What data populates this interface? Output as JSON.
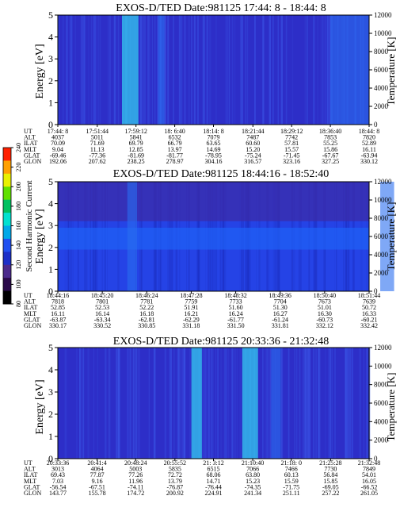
{
  "panels": [
    {
      "title": "EXOS-D/TED   Date:981125  17:44: 8 - 18:44: 8",
      "ylabel": "Energy [eV]",
      "rlabel": "Temperature [K]",
      "yticks": [
        "0",
        "1",
        "2",
        "3",
        "4",
        "5"
      ],
      "rticks": [
        "0",
        "2000",
        "4000",
        "6000",
        "8000",
        "10000",
        "12000"
      ],
      "table": {
        "labels": [
          "UT",
          "ALT",
          "ILAT",
          "MLT",
          "GLAT",
          "GLON"
        ],
        "columns": [
          [
            "17:44: 8",
            "4037",
            "70.09",
            "9.04",
            "-69.46",
            "192.06"
          ],
          [
            "17:51:44",
            "5011",
            "71.69",
            "11.13",
            "-77.36",
            "207.62"
          ],
          [
            "17:59:12",
            "5841",
            "69.79",
            "12.85",
            "-81.69",
            "238.25"
          ],
          [
            "18: 6:40",
            "6532",
            "66.79",
            "13.97",
            "-81.77",
            "278.97"
          ],
          [
            "18:14: 8",
            "7079",
            "63.65",
            "14.69",
            "-78.95",
            "304.16"
          ],
          [
            "18:21:44",
            "7487",
            "60.60",
            "15.20",
            "-75.24",
            "316.57"
          ],
          [
            "18:29:12",
            "7742",
            "57.81",
            "15.57",
            "-71.45",
            "323.16"
          ],
          [
            "18:36:40",
            "7853",
            "55.25",
            "15.86",
            "-67.67",
            "327.25"
          ],
          [
            "18:44: 8",
            "7820",
            "52.89",
            "16.11",
            "-63.94",
            "330.12"
          ]
        ]
      }
    },
    {
      "title": "EXOS-D/TED   Date:981125  18:44:16 - 18:52:40",
      "ylabel": "Energy [eV]",
      "rlabel": "Temperature [K]",
      "yticks": [
        "0",
        "1",
        "2",
        "3",
        "4",
        "5"
      ],
      "rticks": [
        "0",
        "2000",
        "4000",
        "6000",
        "8000",
        "10000",
        "12000"
      ],
      "table": {
        "labels": [
          "UT",
          "ALT",
          "ILAT",
          "MLT",
          "GLAT",
          "GLON"
        ],
        "columns": [
          [
            "18:44:16",
            "7818",
            "52.85",
            "16.11",
            "-63.87",
            "330.17"
          ],
          [
            "18:45:20",
            "7801",
            "52.53",
            "16.14",
            "-63.34",
            "330.52"
          ],
          [
            "18:46:24",
            "7781",
            "52.22",
            "16.18",
            "-62.81",
            "330.85"
          ],
          [
            "18:47:28",
            "7759",
            "51.91",
            "16.21",
            "-62.29",
            "331.18"
          ],
          [
            "18:48:32",
            "7733",
            "51.60",
            "16.24",
            "-61.77",
            "331.50"
          ],
          [
            "18:49:36",
            "7704",
            "51.30",
            "16.27",
            "-61.24",
            "331.81"
          ],
          [
            "18:50:40",
            "7673",
            "51.01",
            "16.30",
            "-60.73",
            "332.12"
          ],
          [
            "18:51:44",
            "7639",
            "50.72",
            "16.33",
            "-60.21",
            "332.42"
          ]
        ]
      }
    },
    {
      "title": "EXOS-D/TED   Date:981125  20:33:36 - 21:32:48",
      "ylabel": "Energy [eV]",
      "rlabel": "Temperature [K]",
      "yticks": [
        "0",
        "1",
        "2",
        "3",
        "4",
        "5"
      ],
      "rticks": [
        "0",
        "2000",
        "4000",
        "6000",
        "8000",
        "10000",
        "12000"
      ],
      "table": {
        "labels": [
          "UT",
          "ALT",
          "ILAT",
          "MLT",
          "GLAT",
          "GLON"
        ],
        "columns": [
          [
            "20:33:36",
            "3013",
            "69.43",
            "7.03",
            "-56.54",
            "143.77"
          ],
          [
            "20:41:4",
            "4064",
            "77.87",
            "9.16",
            "-67.51",
            "155.78"
          ],
          [
            "20:48:24",
            "5003",
            "77.26",
            "11.96",
            "-74.11",
            "174.72"
          ],
          [
            "20:55:52",
            "5835",
            "72.72",
            "13.79",
            "-76.87",
            "200.92"
          ],
          [
            "21: 3:12",
            "6515",
            "68.06",
            "14.71",
            "-76.44",
            "224.91"
          ],
          [
            "21:10:40",
            "7066",
            "63.80",
            "15.23",
            "-74.35",
            "241.34"
          ],
          [
            "21:18: 0",
            "7466",
            "60.13",
            "15.59",
            "-71.75",
            "251.11"
          ],
          [
            "21:25:28",
            "7730",
            "56.84",
            "15.85",
            "-69.05",
            "257.22"
          ],
          [
            "21:32:48",
            "7849",
            "54.01",
            "16.05",
            "-66.52",
            "261.05"
          ]
        ]
      }
    }
  ],
  "colorbar": {
    "label": "Second Harmonic Current",
    "ticks": [
      "80",
      "100",
      "120",
      "140",
      "160",
      "180",
      "200",
      "220",
      "240"
    ]
  },
  "chart_data": [
    {
      "type": "heatmap",
      "title": "EXOS-D/TED   Date:981125  17:44: 8 - 18:44: 8",
      "ylabel": "Energy [eV]",
      "ylim": [
        0,
        5
      ],
      "y2label": "Temperature [K]",
      "y2lim": [
        0,
        12000
      ],
      "x": [
        "17:44: 8",
        "17:51:44",
        "17:59:12",
        "18: 6:40",
        "18:14: 8",
        "18:21:44",
        "18:29:12",
        "18:36:40",
        "18:44: 8"
      ],
      "background_level": 130,
      "features": [
        {
          "x_range": [
            "17:56:30",
            "17:59:40"
          ],
          "level": 165
        },
        {
          "x_range": [
            "18:03:30",
            "18:04:40"
          ],
          "level": 150
        },
        {
          "x_range": [
            "18:36:40",
            "18:44:08"
          ],
          "level": 145
        }
      ]
    },
    {
      "type": "heatmap",
      "title": "EXOS-D/TED   Date:981125  18:44:16 - 18:52:40",
      "ylabel": "Energy [eV]",
      "ylim": [
        0,
        5
      ],
      "y2label": "Temperature [K]",
      "y2lim": [
        0,
        12000
      ],
      "x": [
        "18:44:16",
        "18:45:20",
        "18:46:24",
        "18:47:28",
        "18:48:32",
        "18:49:36",
        "18:50:40",
        "18:51:44"
      ],
      "background_level": 140,
      "features": [
        {
          "y_range": [
            1.9,
            2.9
          ],
          "level": 145
        },
        {
          "y_range": [
            3.2,
            5.0
          ],
          "level": 125
        },
        {
          "x_range": [
            "18:45:56",
            "18:46:10"
          ],
          "level": 150
        },
        {
          "x_range": [
            "18:52:00",
            "18:52:20"
          ],
          "level": 150
        }
      ]
    },
    {
      "type": "heatmap",
      "title": "EXOS-D/TED   Date:981125  20:33:36 - 21:32:48",
      "ylabel": "Energy [eV]",
      "ylim": [
        0,
        5
      ],
      "y2label": "Temperature [K]",
      "y2lim": [
        0,
        12000
      ],
      "x": [
        "20:33:36",
        "20:41:4",
        "20:48:24",
        "20:55:52",
        "21: 3:12",
        "21:10:40",
        "21:18: 0",
        "21:25:28",
        "21:32:48"
      ],
      "background_level": 135,
      "features": [
        {
          "x_range": [
            "20:59:00",
            "21:01:00"
          ],
          "level": 160
        },
        {
          "x_range": [
            "21:08:40",
            "21:11:40"
          ],
          "level": 165
        },
        {
          "x_range": [
            "21:14:10",
            "21:16:00"
          ],
          "level": 155
        }
      ]
    }
  ],
  "colors": {
    "background": "#ffffff",
    "panel_base": "#2d2ec8",
    "panel2_base": "#2543e6",
    "stripe_light": "#2a6ef0",
    "stripe_cyan": "#34c8ee",
    "colorbar": [
      "#000000",
      "#2a0a4a",
      "#4b2a8c",
      "#1c2fc8",
      "#2050f0",
      "#00a8e8",
      "#00e0d0",
      "#00c060",
      "#60e000",
      "#e8f000",
      "#ffa000",
      "#ff2000"
    ]
  }
}
